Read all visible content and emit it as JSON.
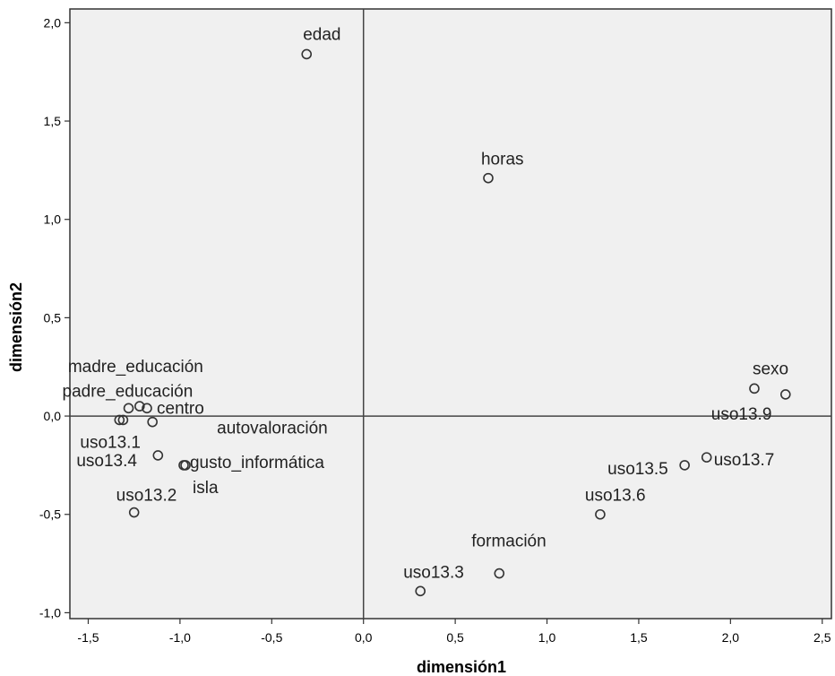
{
  "chart_data": {
    "type": "scatter",
    "title": "",
    "xlabel": "dimensión1",
    "ylabel": "dimensión2",
    "xlim": [
      -1.6,
      2.55
    ],
    "ylim": [
      -1.03,
      2.07
    ],
    "xticks": [
      -1.5,
      -1.0,
      -0.5,
      0.0,
      0.5,
      1.0,
      1.5,
      2.0,
      2.5
    ],
    "yticks": [
      -1.0,
      -0.5,
      0.0,
      0.5,
      1.0,
      1.5,
      2.0
    ],
    "xtick_labels": [
      "-1,5",
      "-1,0",
      "-0,5",
      "0,0",
      "0,5",
      "1,0",
      "1,5",
      "2,0",
      "2,5"
    ],
    "ytick_labels": [
      "-1,0",
      "-0,5",
      "0,0",
      "0,5",
      "1,0",
      "1,5",
      "2,0"
    ],
    "reference_lines": {
      "x": 0,
      "y": 0
    },
    "grid": false,
    "plot_background": "#f0f0f0",
    "marker_color": "#333333",
    "points": [
      {
        "label": "edad",
        "x": -0.31,
        "y": 1.84
      },
      {
        "label": "horas",
        "x": 0.68,
        "y": 1.21
      },
      {
        "label": "madre_educación",
        "x": -1.22,
        "y": 0.05
      },
      {
        "label": "padre_educación",
        "x": -1.28,
        "y": 0.04
      },
      {
        "label": "centro",
        "x": -1.18,
        "y": 0.04
      },
      {
        "label": "autovaloración",
        "x": -1.15,
        "y": -0.03
      },
      {
        "label": "uso13.1",
        "x": -1.31,
        "y": -0.02
      },
      {
        "label": "",
        "x": -1.33,
        "y": -0.02
      },
      {
        "label": "uso13.4",
        "x": -1.12,
        "y": -0.2
      },
      {
        "label": "gusto_informática",
        "x": -0.98,
        "y": -0.25
      },
      {
        "label": "isla",
        "x": -0.97,
        "y": -0.25
      },
      {
        "label": "uso13.2",
        "x": -1.25,
        "y": -0.49
      },
      {
        "label": "sexo",
        "x": 2.13,
        "y": 0.14
      },
      {
        "label": "uso13.9",
        "x": 2.3,
        "y": 0.11
      },
      {
        "label": "uso13.5",
        "x": 1.75,
        "y": -0.25
      },
      {
        "label": "uso13.7",
        "x": 1.87,
        "y": -0.21
      },
      {
        "label": "uso13.6",
        "x": 1.29,
        "y": -0.5
      },
      {
        "label": "formación",
        "x": 0.74,
        "y": -0.8
      },
      {
        "label": "uso13.3",
        "x": 0.31,
        "y": -0.89
      }
    ]
  }
}
